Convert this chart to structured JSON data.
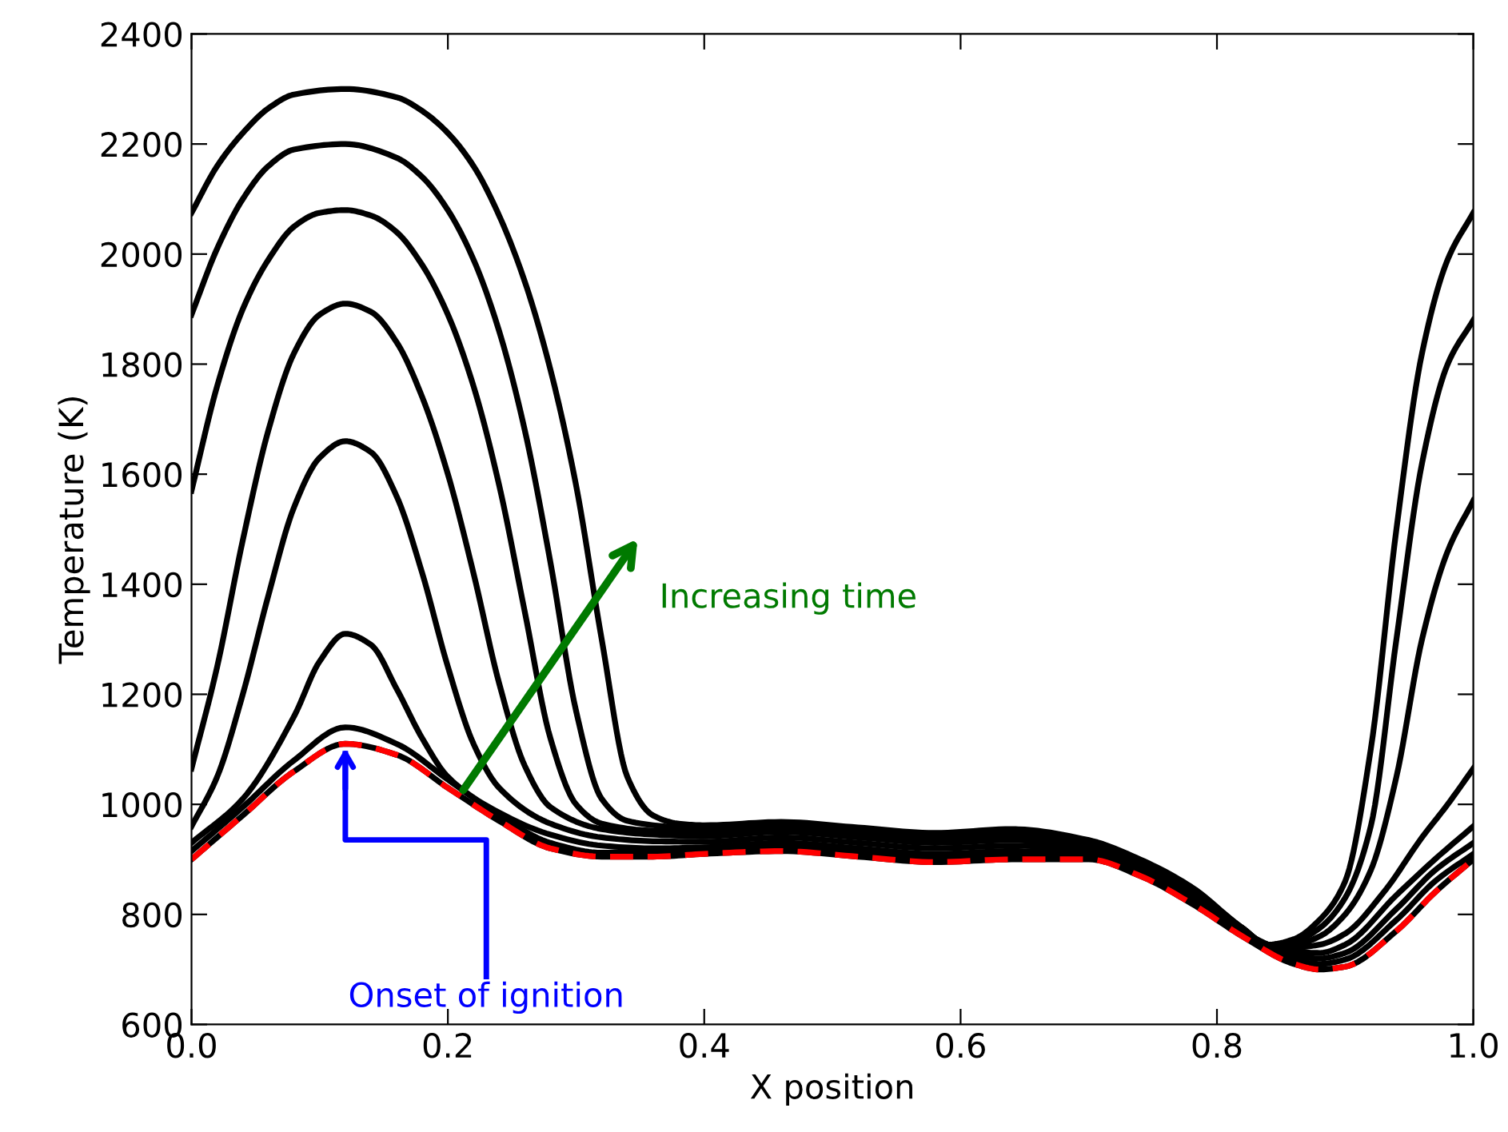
{
  "chart_data": {
    "type": "line",
    "xlabel": "X position",
    "ylabel": "Temperature (K)",
    "xlim": [
      0,
      1
    ],
    "ylim": [
      600,
      2400
    ],
    "xticks": [
      {
        "value": 0,
        "label": "0.0"
      },
      {
        "value": 0.2,
        "label": "0.2"
      },
      {
        "value": 0.4,
        "label": "0.4"
      },
      {
        "value": 0.6,
        "label": "0.6"
      },
      {
        "value": 0.8,
        "label": "0.8"
      },
      {
        "value": 1,
        "label": "1.0"
      }
    ],
    "yticks": [
      600,
      800,
      1000,
      1200,
      1400,
      1600,
      1800,
      2000,
      2200,
      2400
    ],
    "grid": false,
    "marker": "none",
    "annotations": [
      "Increasing time",
      {
        "text": "Onset of ignition",
        "x": 0.12,
        "y": 1110
      }
    ],
    "series": [
      {
        "color": "#000000",
        "line_style": "solid",
        "x": [
          0,
          0.04,
          0.08,
          0.12,
          0.16,
          0.2,
          0.24,
          0.28,
          0.32,
          0.36,
          0.4,
          0.46,
          0.52,
          0.58,
          0.64,
          0.7,
          0.74,
          0.78,
          0.82,
          0.86,
          0.88,
          0.9,
          0.94,
          0.97,
          1.0
        ],
        "values": [
          900,
          980,
          1060,
          1110,
          1090,
          1030,
          970,
          920,
          905,
          905,
          910,
          915,
          905,
          895,
          900,
          900,
          870,
          820,
          760,
          710,
          700,
          705,
          770,
          840,
          900
        ]
      },
      {
        "color": "#000000",
        "line_style": "solid",
        "x": [
          0,
          0.04,
          0.08,
          0.12,
          0.16,
          0.2,
          0.24,
          0.28,
          0.32,
          0.36,
          0.4,
          0.46,
          0.52,
          0.58,
          0.64,
          0.7,
          0.74,
          0.78,
          0.82,
          0.86,
          0.88,
          0.9,
          0.94,
          0.97,
          1.0
        ],
        "values": [
          915,
          995,
          1080,
          1140,
          1110,
          1045,
          980,
          930,
          912,
          912,
          915,
          922,
          912,
          902,
          907,
          905,
          875,
          825,
          763,
          718,
          710,
          718,
          790,
          860,
          910
        ]
      },
      {
        "color": "#000000",
        "line_style": "solid",
        "x": [
          0,
          0.04,
          0.08,
          0.1,
          0.12,
          0.14,
          0.16,
          0.18,
          0.2,
          0.24,
          0.28,
          0.32,
          0.36,
          0.4,
          0.46,
          0.52,
          0.58,
          0.64,
          0.7,
          0.74,
          0.78,
          0.82,
          0.86,
          0.88,
          0.9,
          0.94,
          0.97,
          1.0
        ],
        "values": [
          930,
          1010,
          1160,
          1260,
          1310,
          1290,
          1210,
          1120,
          1050,
          985,
          945,
          925,
          920,
          922,
          930,
          920,
          910,
          915,
          910,
          880,
          830,
          765,
          725,
          720,
          730,
          810,
          880,
          930
        ]
      },
      {
        "color": "#000000",
        "line_style": "solid",
        "x": [
          0,
          0.02,
          0.04,
          0.06,
          0.08,
          0.1,
          0.12,
          0.14,
          0.16,
          0.18,
          0.2,
          0.22,
          0.24,
          0.28,
          0.32,
          0.36,
          0.4,
          0.46,
          0.52,
          0.58,
          0.64,
          0.7,
          0.74,
          0.78,
          0.82,
          0.86,
          0.88,
          0.9,
          0.94,
          0.97,
          1.0
        ],
        "values": [
          960,
          1050,
          1200,
          1380,
          1540,
          1630,
          1660,
          1640,
          1560,
          1420,
          1250,
          1110,
          1030,
          965,
          940,
          933,
          932,
          940,
          930,
          920,
          925,
          915,
          885,
          835,
          768,
          732,
          730,
          745,
          835,
          900,
          960
        ]
      },
      {
        "color": "#000000",
        "line_style": "solid",
        "x": [
          0,
          0.02,
          0.04,
          0.06,
          0.08,
          0.1,
          0.12,
          0.14,
          0.16,
          0.18,
          0.2,
          0.22,
          0.24,
          0.26,
          0.28,
          0.32,
          0.36,
          0.4,
          0.46,
          0.52,
          0.58,
          0.64,
          0.7,
          0.74,
          0.78,
          0.82,
          0.84,
          0.86,
          0.88,
          0.9,
          0.93,
          0.96,
          0.98,
          1.0
        ],
        "values": [
          1065,
          1250,
          1480,
          1680,
          1820,
          1890,
          1910,
          1895,
          1840,
          1740,
          1600,
          1420,
          1220,
          1070,
          995,
          955,
          945,
          942,
          950,
          940,
          930,
          935,
          920,
          890,
          840,
          772,
          745,
          740,
          745,
          765,
          840,
          940,
          1000,
          1065
        ]
      },
      {
        "color": "#000000",
        "line_style": "solid",
        "x": [
          0,
          0.02,
          0.04,
          0.06,
          0.08,
          0.1,
          0.12,
          0.14,
          0.16,
          0.18,
          0.2,
          0.22,
          0.24,
          0.26,
          0.28,
          0.3,
          0.32,
          0.36,
          0.4,
          0.46,
          0.52,
          0.58,
          0.64,
          0.7,
          0.74,
          0.78,
          0.82,
          0.84,
          0.86,
          0.88,
          0.9,
          0.92,
          0.94,
          0.96,
          0.98,
          1.0
        ],
        "values": [
          1570,
          1760,
          1900,
          1990,
          2050,
          2075,
          2080,
          2070,
          2040,
          1980,
          1890,
          1760,
          1580,
          1350,
          1120,
          1000,
          965,
          952,
          950,
          958,
          948,
          938,
          942,
          925,
          895,
          845,
          775,
          745,
          745,
          760,
          800,
          880,
          1050,
          1300,
          1460,
          1552
        ]
      },
      {
        "color": "#000000",
        "line_style": "solid",
        "x": [
          0,
          0.02,
          0.04,
          0.06,
          0.08,
          0.12,
          0.16,
          0.18,
          0.2,
          0.22,
          0.24,
          0.26,
          0.28,
          0.3,
          0.32,
          0.34,
          0.38,
          0.4,
          0.46,
          0.52,
          0.58,
          0.64,
          0.7,
          0.74,
          0.78,
          0.82,
          0.84,
          0.86,
          0.88,
          0.9,
          0.92,
          0.94,
          0.96,
          0.98,
          1.0
        ],
        "values": [
          1890,
          2010,
          2100,
          2160,
          2190,
          2200,
          2175,
          2140,
          2080,
          1990,
          1860,
          1680,
          1440,
          1170,
          1010,
          970,
          958,
          955,
          962,
          952,
          942,
          948,
          930,
          898,
          848,
          775,
          745,
          750,
          775,
          830,
          960,
          1300,
          1620,
          1800,
          1880
        ]
      },
      {
        "color": "#000000",
        "line_style": "solid",
        "x": [
          0,
          0.02,
          0.04,
          0.06,
          0.08,
          0.12,
          0.16,
          0.18,
          0.2,
          0.22,
          0.24,
          0.26,
          0.28,
          0.3,
          0.32,
          0.34,
          0.36,
          0.38,
          0.4,
          0.46,
          0.52,
          0.58,
          0.64,
          0.7,
          0.74,
          0.78,
          0.82,
          0.84,
          0.86,
          0.88,
          0.9,
          0.92,
          0.94,
          0.96,
          0.98,
          1.0
        ],
        "values": [
          2075,
          2160,
          2220,
          2265,
          2290,
          2300,
          2285,
          2260,
          2220,
          2160,
          2070,
          1950,
          1790,
          1580,
          1300,
          1050,
          980,
          965,
          962,
          968,
          958,
          948,
          955,
          935,
          900,
          850,
          775,
          745,
          755,
          790,
          860,
          1100,
          1500,
          1820,
          1990,
          2075
        ]
      },
      {
        "color": "#ff0000",
        "line_style": "dashed",
        "x": [
          0,
          0.04,
          0.08,
          0.12,
          0.16,
          0.2,
          0.24,
          0.28,
          0.32,
          0.36,
          0.4,
          0.46,
          0.52,
          0.58,
          0.64,
          0.7,
          0.74,
          0.78,
          0.82,
          0.86,
          0.88,
          0.9,
          0.94,
          0.97,
          1.0
        ],
        "values": [
          900,
          980,
          1060,
          1110,
          1090,
          1030,
          970,
          920,
          905,
          905,
          910,
          915,
          905,
          895,
          900,
          900,
          870,
          820,
          760,
          710,
          700,
          705,
          770,
          840,
          900
        ]
      }
    ]
  }
}
